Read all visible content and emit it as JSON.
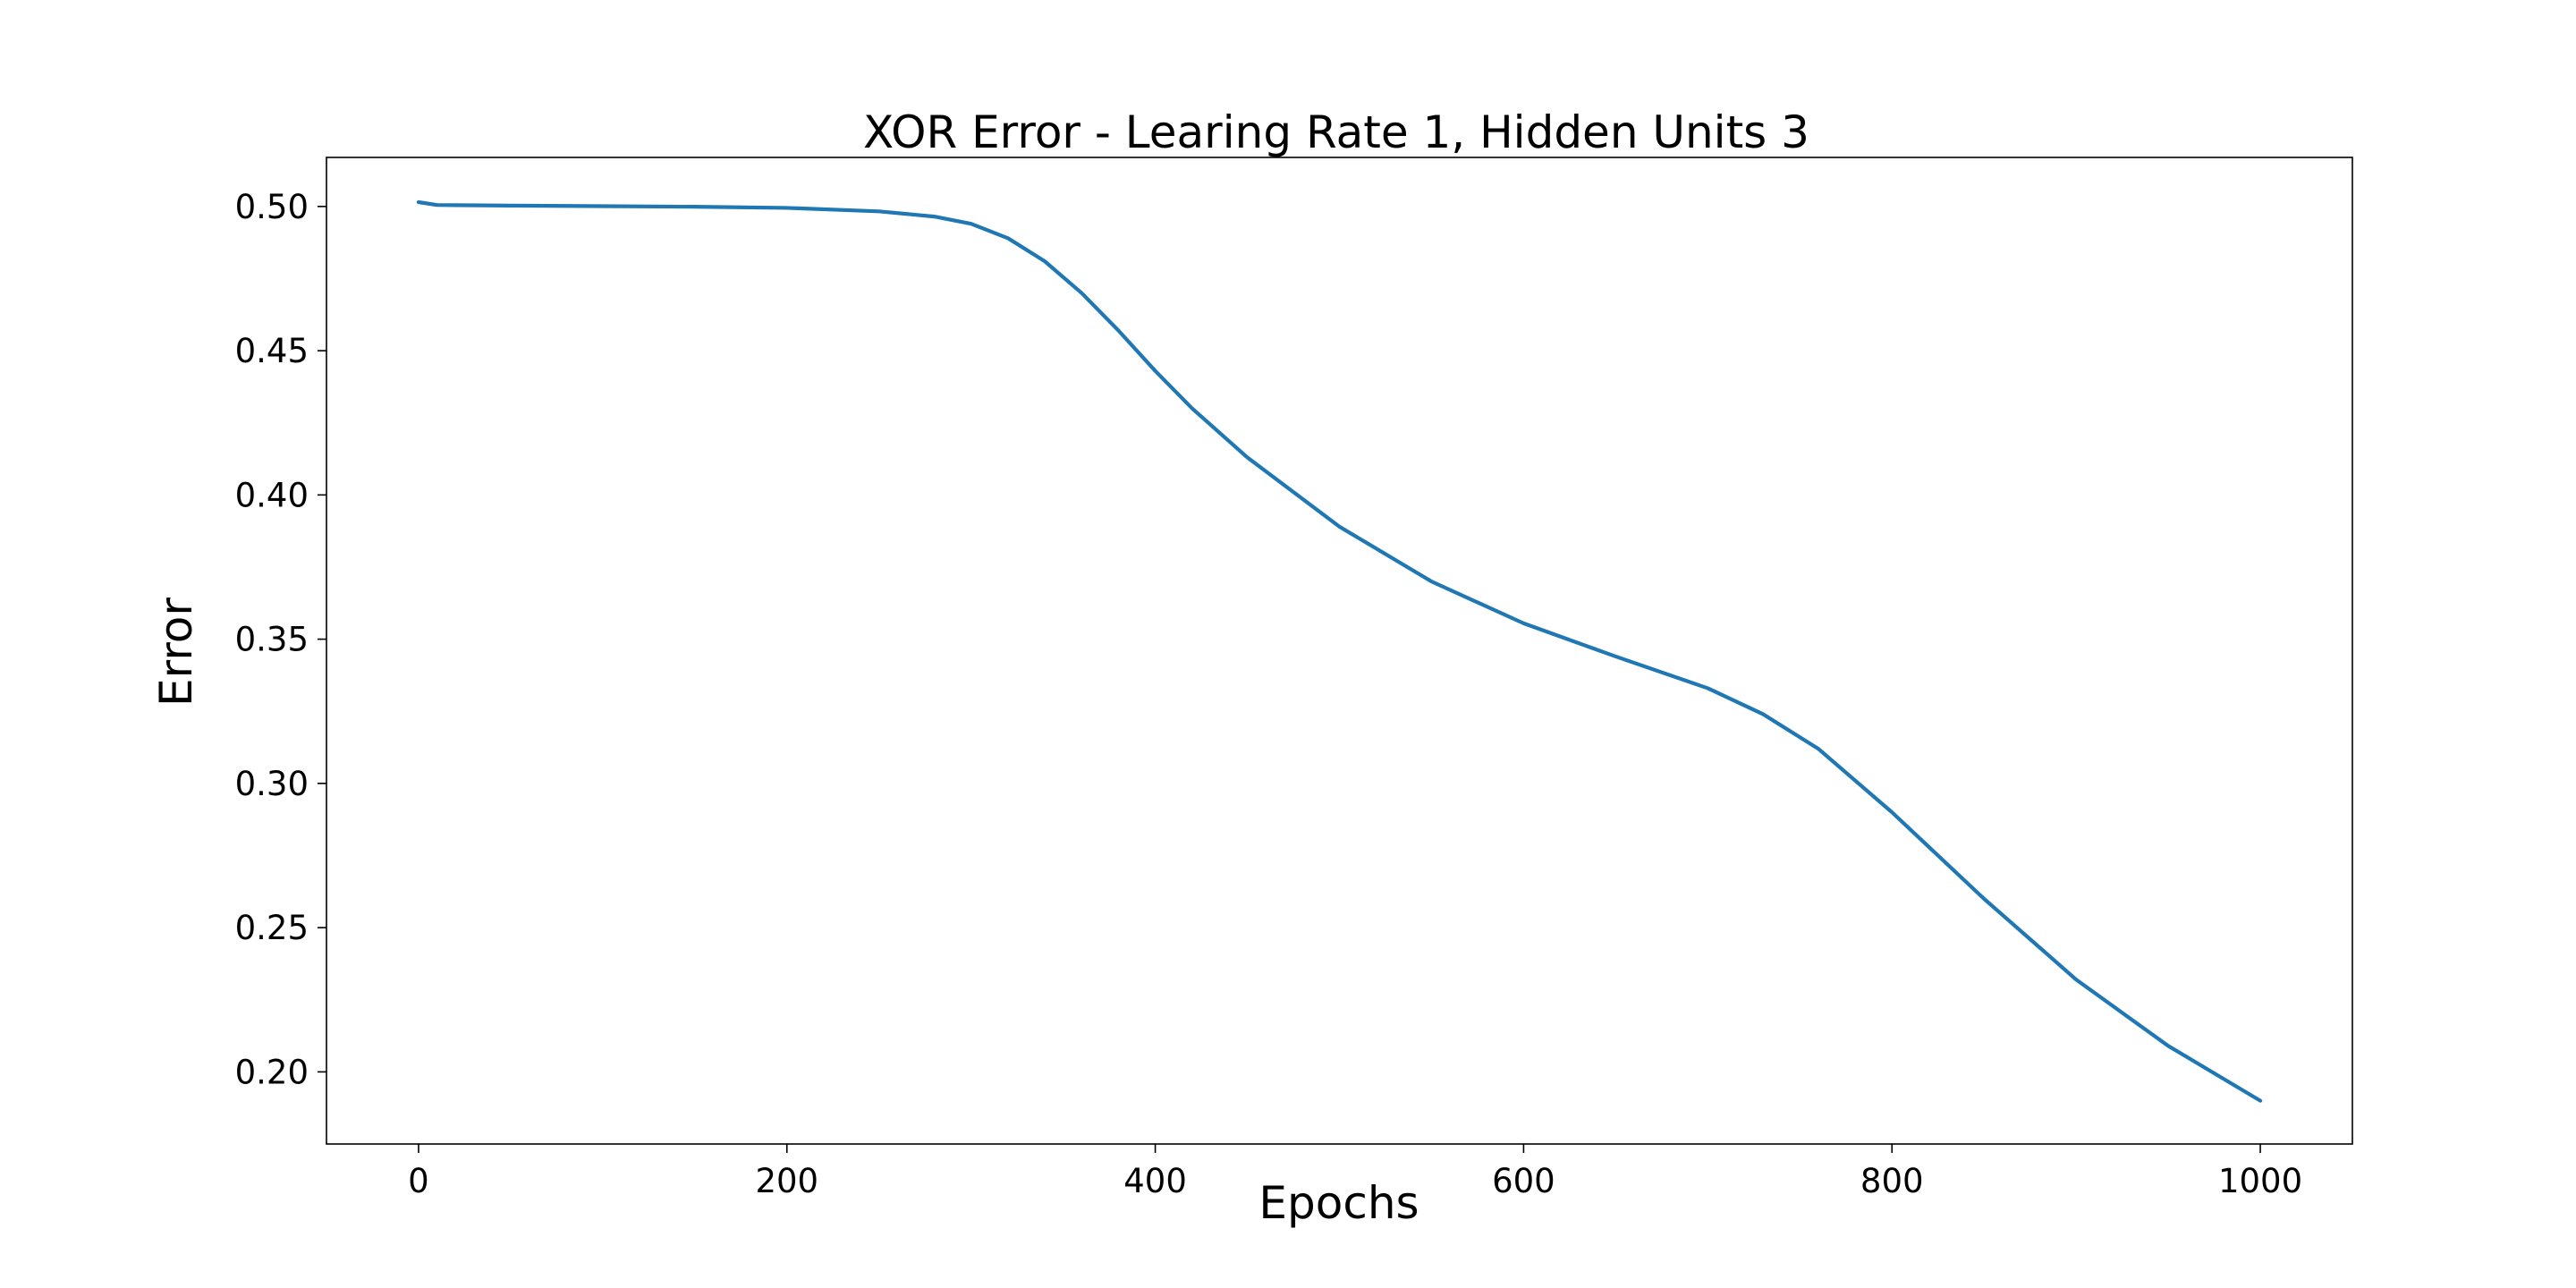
{
  "chart_data": {
    "type": "line",
    "title": "XOR Error - Learing Rate 1, Hidden Units 3",
    "xlabel": "Epochs",
    "ylabel": "Error",
    "xlim": [
      -50,
      1050
    ],
    "ylim": [
      0.175,
      0.517
    ],
    "xticks": [
      0,
      200,
      400,
      600,
      800,
      1000
    ],
    "xtick_labels": [
      "0",
      "200",
      "400",
      "600",
      "800",
      "1000"
    ],
    "yticks": [
      0.2,
      0.25,
      0.3,
      0.35,
      0.4,
      0.45,
      0.5
    ],
    "ytick_labels": [
      "0.20",
      "0.25",
      "0.30",
      "0.35",
      "0.40",
      "0.45",
      "0.50"
    ],
    "grid": false,
    "line_color": "#1f77b4",
    "series": [
      {
        "x": [
          0,
          10,
          50,
          100,
          150,
          200,
          250,
          280,
          300,
          320,
          340,
          360,
          380,
          400,
          420,
          450,
          500,
          550,
          600,
          650,
          700,
          730,
          760,
          800,
          850,
          900,
          950,
          1000
        ],
        "values": [
          0.5015,
          0.5005,
          0.5003,
          0.5001,
          0.4999,
          0.4995,
          0.4983,
          0.4965,
          0.494,
          0.489,
          0.481,
          0.47,
          0.457,
          0.443,
          0.43,
          0.413,
          0.389,
          0.37,
          0.3555,
          0.344,
          0.333,
          0.324,
          0.312,
          0.29,
          0.26,
          0.232,
          0.209,
          0.19
        ]
      }
    ]
  }
}
